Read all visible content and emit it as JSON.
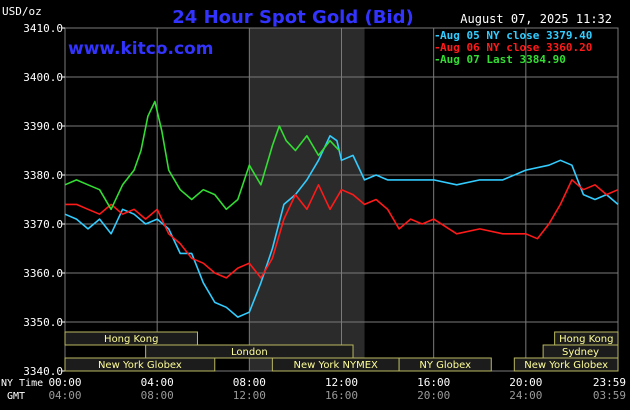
{
  "header": {
    "title": "24 Hour Spot Gold (Bid)",
    "unit": "USD/oz",
    "datetime": "August 07, 2025 11:32",
    "watermark": "www.kitco.com"
  },
  "legend": [
    {
      "label": "Aug 05 NY close 3379.40",
      "color": "#33ccff"
    },
    {
      "label": "Aug 06 NY close 3360.20",
      "color": "#ff1a1a"
    },
    {
      "label": "Aug 07 Last 3384.90",
      "color": "#33dd33"
    }
  ],
  "colors": {
    "background": "#000000",
    "grid": "#7a7a7a",
    "axis_text": "#ffffff",
    "title": "#3333ff",
    "watermark": "#3333ff",
    "session_fill": "#1c1c1c",
    "session_border": "#b8b860",
    "session_text": "#ffff99",
    "highlight_band": "#2b2b2b",
    "gmt_text": "#9a9a9a"
  },
  "axes": {
    "ny_time_label": "NY Time",
    "gmt_label": "GMT",
    "ny_ticks": [
      "00:00",
      "04:00",
      "08:00",
      "12:00",
      "16:00",
      "20:00",
      "23:59"
    ],
    "gmt_ticks": [
      "04:00",
      "08:00",
      "12:00",
      "16:00",
      "20:00",
      "24:00",
      "03:59"
    ]
  },
  "sessions": [
    {
      "label": "Hong Kong",
      "start": 0,
      "end": 5.75,
      "row": 0
    },
    {
      "label": "Hong Kong",
      "start": 21.25,
      "end": 24,
      "row": 0
    },
    {
      "label": "London",
      "start": 3.5,
      "end": 12.5,
      "row": 1
    },
    {
      "label": "Sydney",
      "start": 20.75,
      "end": 24,
      "row": 1
    },
    {
      "label": "New York Globex",
      "start": 0,
      "end": 6.5,
      "row": 2
    },
    {
      "label": "New York NYMEX",
      "start": 9,
      "end": 14.5,
      "row": 2
    },
    {
      "label": "NY Globex",
      "start": 14.5,
      "end": 18.5,
      "row": 2
    },
    {
      "label": "New York Globex",
      "start": 19.5,
      "end": 24,
      "row": 2
    }
  ],
  "chart_data": {
    "type": "line",
    "title": "24 Hour Spot Gold (Bid)",
    "ylabel": "USD/oz",
    "xlabel": "NY Time",
    "ylim": [
      3340,
      3410
    ],
    "xlim": [
      0,
      24
    ],
    "yticks": [
      "3410.0",
      "3400.0",
      "3390.0",
      "3380.0",
      "3370.0",
      "3360.0",
      "3350.0",
      "3340.0"
    ],
    "highlight_band": [
      8.0,
      13.0
    ],
    "grid": true,
    "legend_position": "top-right",
    "series": [
      {
        "name": "Aug 05 NY close 3379.40",
        "color": "#33ccff",
        "x": [
          0,
          0.5,
          1,
          1.5,
          2,
          2.5,
          3,
          3.5,
          4,
          4.5,
          5,
          5.5,
          6,
          6.5,
          7,
          7.5,
          8,
          8.5,
          9,
          9.5,
          10,
          10.5,
          11,
          11.5,
          11.8,
          12,
          12.5,
          13,
          13.5,
          14,
          15,
          16,
          17,
          18,
          19,
          20,
          21,
          21.5,
          22,
          22.5,
          23,
          23.5,
          24
        ],
        "y": [
          3372,
          3371,
          3369,
          3371,
          3368,
          3373,
          3372,
          3370,
          3371,
          3369,
          3364,
          3364,
          3358,
          3354,
          3353,
          3351,
          3352,
          3358,
          3365,
          3374,
          3376,
          3379,
          3383,
          3388,
          3387,
          3383,
          3384,
          3379,
          3380,
          3379,
          3379,
          3379,
          3378,
          3379,
          3379,
          3381,
          3382,
          3383,
          3382,
          3376,
          3375,
          3376,
          3374
        ]
      },
      {
        "name": "Aug 06 NY close 3360.20",
        "color": "#ff1a1a",
        "x": [
          0,
          0.5,
          1,
          1.5,
          2,
          2.5,
          3,
          3.5,
          4,
          4.5,
          5,
          5.5,
          6,
          6.5,
          7,
          7.5,
          8,
          8.5,
          9,
          9.5,
          10,
          10.5,
          11,
          11.5,
          12,
          12.5,
          13,
          13.5,
          14,
          14.5,
          15,
          15.5,
          16,
          17,
          18,
          19,
          20,
          20.5,
          21,
          21.5,
          22,
          22.5,
          23,
          23.5,
          24
        ],
        "y": [
          3374,
          3374,
          3373,
          3372,
          3374,
          3372,
          3373,
          3371,
          3373,
          3368,
          3366,
          3363,
          3362,
          3360,
          3359,
          3361,
          3362,
          3359,
          3363,
          3371,
          3376,
          3373,
          3378,
          3373,
          3377,
          3376,
          3374,
          3375,
          3373,
          3369,
          3371,
          3370,
          3371,
          3368,
          3369,
          3368,
          3368,
          3367,
          3370,
          3374,
          3379,
          3377,
          3378,
          3376,
          3377
        ]
      },
      {
        "name": "Aug 07 Last 3384.90",
        "color": "#33dd33",
        "x": [
          0,
          0.5,
          1,
          1.5,
          2,
          2.5,
          3,
          3.3,
          3.6,
          3.9,
          4.2,
          4.5,
          5,
          5.5,
          6,
          6.5,
          7,
          7.5,
          8,
          8.5,
          9,
          9.3,
          9.6,
          10,
          10.5,
          11,
          11.5,
          11.9
        ],
        "y": [
          3378,
          3379,
          3378,
          3377,
          3373,
          3378,
          3381,
          3385,
          3392,
          3395,
          3389,
          3381,
          3377,
          3375,
          3377,
          3376,
          3373,
          3375,
          3382,
          3378,
          3386,
          3390,
          3387,
          3385,
          3388,
          3384,
          3387,
          3385
        ]
      }
    ]
  }
}
